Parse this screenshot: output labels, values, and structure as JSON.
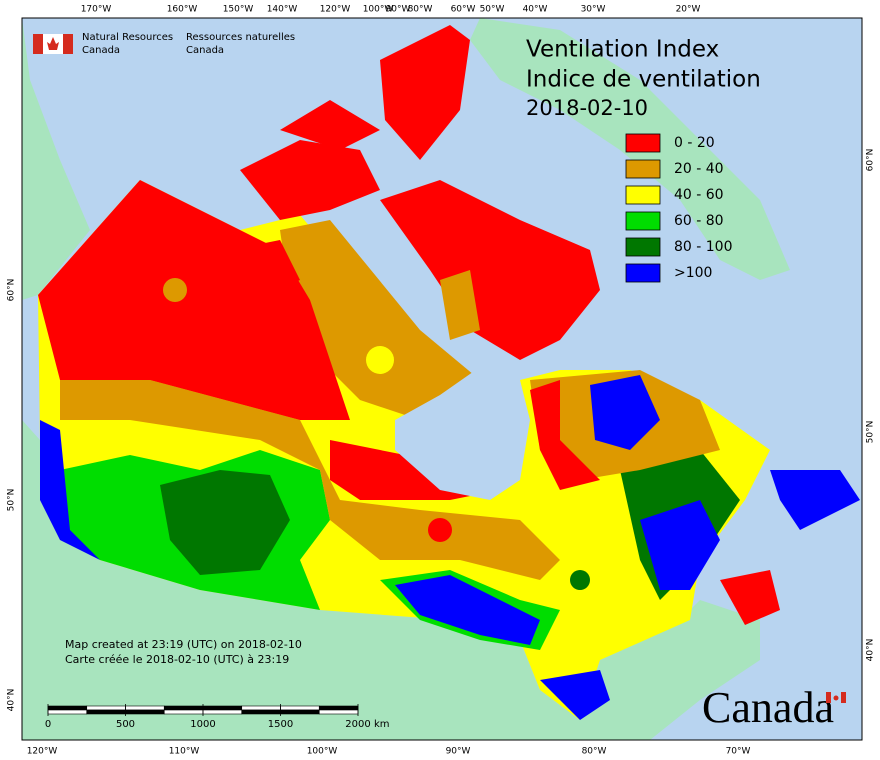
{
  "header": {
    "department_en": [
      "Natural Resources",
      "Canada"
    ],
    "department_fr": [
      "Ressources naturelles",
      "Canada"
    ]
  },
  "title": [
    "Ventilation Index",
    "Indice de ventilation",
    "2018-02-10"
  ],
  "legend": [
    {
      "label": "0 - 20",
      "color": "#ff0000"
    },
    {
      "label": "20 - 40",
      "color": "#dd9900"
    },
    {
      "label": "40 - 60",
      "color": "#ffff00"
    },
    {
      "label": "60 - 80",
      "color": "#00dd00"
    },
    {
      "label": "80 - 100",
      "color": "#007700"
    },
    {
      "label": ">100",
      "color": "#0000ff"
    }
  ],
  "graticule": {
    "top": [
      "170°W",
      "160°W",
      "150°W",
      "140°W",
      "120°W",
      "100°W",
      "90°W",
      "80°W",
      "60°W",
      "50°W",
      "40°W",
      "30°W",
      "20°W"
    ],
    "bottom": [
      "120°W",
      "110°W",
      "100°W",
      "90°W",
      "80°W",
      "70°W"
    ],
    "left": [
      "60°N",
      "50°N",
      "40°N"
    ],
    "right": [
      "60°N",
      "50°N",
      "40°N"
    ]
  },
  "notes": [
    "Map created at 23:19 (UTC) on 2018-02-10",
    "Carte créée le 2018-02-10 (UTC) à 23:19"
  ],
  "scale_bar": {
    "ticks": [
      0,
      500,
      1000,
      1500,
      2000
    ],
    "unit": "km"
  },
  "wordmark": "Canada"
}
